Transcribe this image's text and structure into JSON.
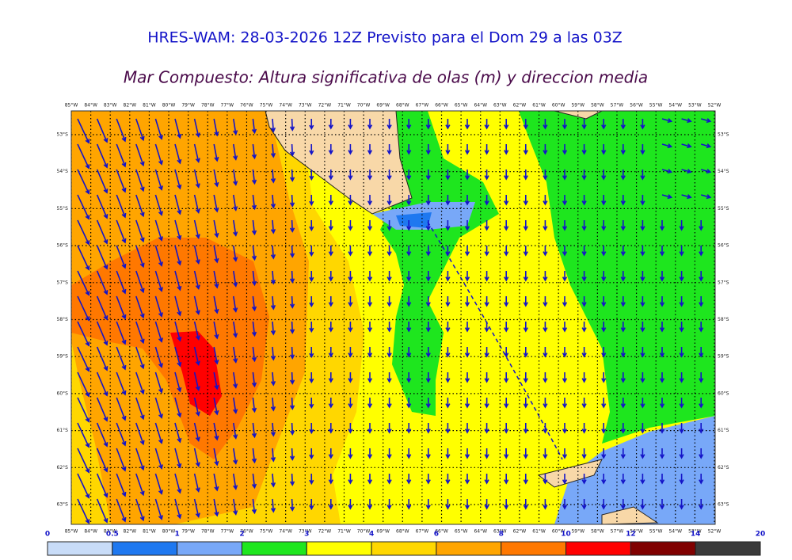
{
  "header": {
    "title": "HRES-WAM: 28-03-2026 12Z Previsto para el Dom 29 a las 03Z",
    "subtitle": "Mar Compuesto: Altura significativa de olas (m) y direccion media"
  },
  "map": {
    "longitudes": [
      "85°W",
      "84°W",
      "83°W",
      "82°W",
      "81°W",
      "80°W",
      "79°W",
      "78°W",
      "77°W",
      "76°W",
      "75°W",
      "74°W",
      "73°W",
      "72°W",
      "71°W",
      "70°W",
      "69°W",
      "68°W",
      "67°W",
      "66°W",
      "65°W",
      "64°W",
      "63°W",
      "62°W",
      "61°W",
      "60°W",
      "59°W",
      "58°W",
      "57°W",
      "56°W",
      "55°W",
      "54°W",
      "53°W",
      "52°W"
    ],
    "latitudes": [
      "53°S",
      "54°S",
      "55°S",
      "56°S",
      "57°S",
      "58°S",
      "59°S",
      "60°S",
      "61°S",
      "62°S",
      "63°S"
    ]
  },
  "colorbar": {
    "levels": [
      0,
      0.5,
      1,
      2,
      3,
      4,
      6,
      8,
      10,
      12,
      14,
      20
    ],
    "colors": [
      "#c8dcf8",
      "#1e78f0",
      "#78a8f8",
      "#1ee61e",
      "#ffff00",
      "#ffd700",
      "#ffa500",
      "#ff7800",
      "#ff0000",
      "#800000",
      "#3a3a3a"
    ]
  }
}
